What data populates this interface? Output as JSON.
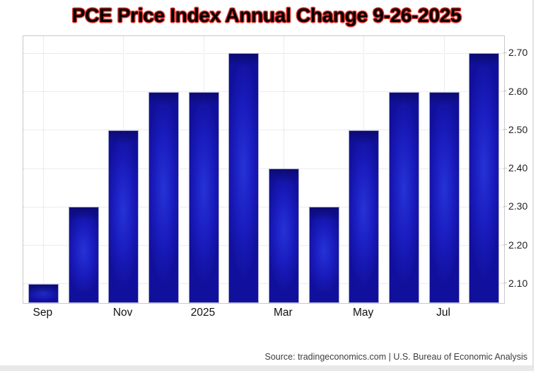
{
  "title": "PCE Price Index Annual Change 9-26-2025",
  "footer": {
    "source_label": "Source: tradingeconomics.com | U.S. Bureau of Economic Analysis"
  },
  "chart_data": {
    "type": "bar",
    "title": "PCE Price Index Annual Change 9-26-2025",
    "values": [
      2.1,
      2.3,
      2.5,
      2.6,
      2.6,
      2.7,
      2.4,
      2.3,
      2.5,
      2.6,
      2.6,
      2.7
    ],
    "x_tick_slots": [
      0,
      2,
      4,
      6,
      8,
      10
    ],
    "x_tick_labels": [
      "Sep",
      "Nov",
      "2025",
      "Mar",
      "May",
      "Jul"
    ],
    "y_tick_values": [
      2.7,
      2.6,
      2.5,
      2.4,
      2.3,
      2.2,
      2.1
    ],
    "y_tick_labels": [
      "2.70",
      "2.60",
      "2.50",
      "2.40",
      "2.30",
      "2.20",
      "2.10"
    ],
    "ylim": [
      2.05,
      2.745
    ],
    "grid": true,
    "legend_position": "none",
    "bar_color": "#11109c",
    "bar_glow_color": "#2533d6",
    "bar_edge_color": "#a6a6cf",
    "gridline_color": "#d9d9d9",
    "title_outline_color": "#dc2f27"
  }
}
